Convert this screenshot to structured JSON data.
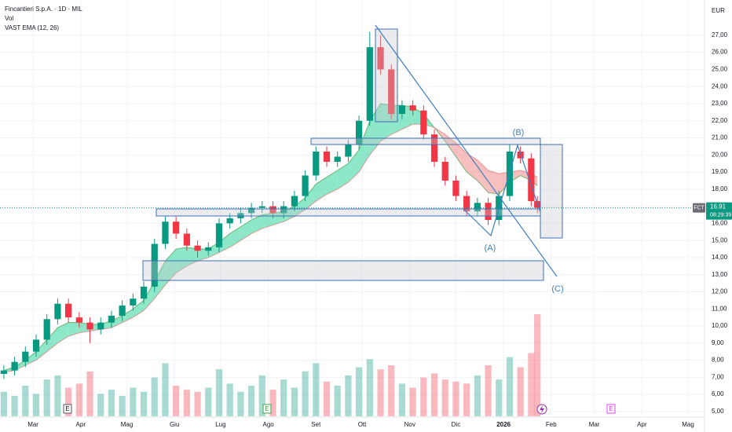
{
  "chart_data": {
    "type": "candlestick",
    "title": "Fincantieri S.p.A. · 1D · MIL",
    "volume_label": "Vol",
    "indicator_label": "VAST EMA (12, 26)",
    "currency": "EUR",
    "symbol": "FCT",
    "last_price": {
      "value": 16.91,
      "label": "16,91"
    },
    "countdown": "08:29:39",
    "annotations": [
      "(A)",
      "(B)",
      "(C)"
    ],
    "event_markers": [
      "E",
      "E",
      "E"
    ],
    "up_color": "#089981",
    "down_color": "#f23645",
    "xlim": [
      37.5,
      495.7
    ],
    "ylim": [
      4.72,
      29.06
    ],
    "xticks": [
      {
        "value": 59,
        "label": "Mar"
      },
      {
        "value": 90,
        "label": "Apr"
      },
      {
        "value": 120,
        "label": "Mag"
      },
      {
        "value": 151,
        "label": "Giu"
      },
      {
        "value": 181,
        "label": "Lug"
      },
      {
        "value": 212,
        "label": "Ago"
      },
      {
        "value": 243,
        "label": "Set"
      },
      {
        "value": 273,
        "label": "Ott"
      },
      {
        "value": 304,
        "label": "Nov"
      },
      {
        "value": 334,
        "label": "Dic"
      },
      {
        "value": 365,
        "label": "2026"
      },
      {
        "value": 396,
        "label": "Feb"
      },
      {
        "value": 424,
        "label": "Mar"
      },
      {
        "value": 455,
        "label": "Apr"
      },
      {
        "value": 485,
        "label": "Mag"
      }
    ],
    "yticks": [
      {
        "value": 5,
        "label": "5,00"
      },
      {
        "value": 6,
        "label": "6,00"
      },
      {
        "value": 7,
        "label": "7,00"
      },
      {
        "value": 8,
        "label": "8,00"
      },
      {
        "value": 9,
        "label": "9,00"
      },
      {
        "value": 10,
        "label": "10,00"
      },
      {
        "value": 11,
        "label": "11,00"
      },
      {
        "value": 12,
        "label": "12,00"
      },
      {
        "value": 13,
        "label": "13,00"
      },
      {
        "value": 14,
        "label": "14,00"
      },
      {
        "value": 15,
        "label": "15,00"
      },
      {
        "value": 16,
        "label": "16,00"
      },
      {
        "value": 17,
        "label": "17,00"
      },
      {
        "value": 18,
        "label": "18,00"
      },
      {
        "value": 19,
        "label": "19,00"
      },
      {
        "value": 20,
        "label": "20,00"
      },
      {
        "value": 21,
        "label": "21,00"
      },
      {
        "value": 22,
        "label": "22,00"
      },
      {
        "value": 23,
        "label": "23,00"
      },
      {
        "value": 24,
        "label": "24,00"
      },
      {
        "value": 25,
        "label": "25,00"
      },
      {
        "value": 26,
        "label": "26,00"
      },
      {
        "value": 27,
        "label": "27,00"
      }
    ],
    "x": [
      40,
      47,
      54,
      61,
      68,
      75,
      82,
      89,
      96,
      103,
      110,
      117,
      124,
      131,
      138,
      145,
      152,
      159,
      166,
      173,
      180,
      187,
      194,
      201,
      208,
      215,
      222,
      229,
      236,
      243,
      250,
      257,
      264,
      271,
      278,
      285,
      292,
      299,
      306,
      313,
      320,
      327,
      334,
      341,
      348,
      355,
      362,
      369,
      376,
      383,
      387
    ],
    "ohlc": [
      [
        7.2,
        7.7,
        6.9,
        7.4
      ],
      [
        7.4,
        8.2,
        7.1,
        7.9
      ],
      [
        7.9,
        8.8,
        7.6,
        8.5
      ],
      [
        8.5,
        9.5,
        8.2,
        9.2
      ],
      [
        9.2,
        10.7,
        8.9,
        10.4
      ],
      [
        10.4,
        11.6,
        10.1,
        11.3
      ],
      [
        11.3,
        11.6,
        10.2,
        10.5
      ],
      [
        10.5,
        10.8,
        9.9,
        10.2
      ],
      [
        10.2,
        10.5,
        9.0,
        9.8
      ],
      [
        9.8,
        10.5,
        9.5,
        10.2
      ],
      [
        10.2,
        10.9,
        9.9,
        10.6
      ],
      [
        10.6,
        11.5,
        10.3,
        11.2
      ],
      [
        11.2,
        11.9,
        10.9,
        11.6
      ],
      [
        11.6,
        12.6,
        11.3,
        12.3
      ],
      [
        12.3,
        15.1,
        12.0,
        14.8
      ],
      [
        14.8,
        16.4,
        14.5,
        16.1
      ],
      [
        16.1,
        16.4,
        15.1,
        15.4
      ],
      [
        15.4,
        15.7,
        14.4,
        14.7
      ],
      [
        14.7,
        15.0,
        14.0,
        14.4
      ],
      [
        14.4,
        14.9,
        14.1,
        14.6
      ],
      [
        14.6,
        16.3,
        14.3,
        16.0
      ],
      [
        16.0,
        16.6,
        15.7,
        16.3
      ],
      [
        16.3,
        16.9,
        16.0,
        16.6
      ],
      [
        16.6,
        17.2,
        16.3,
        16.9
      ],
      [
        16.9,
        17.3,
        16.6,
        17.0
      ],
      [
        17.0,
        17.3,
        16.3,
        16.6
      ],
      [
        16.6,
        17.3,
        16.3,
        17.0
      ],
      [
        17.0,
        17.9,
        16.7,
        17.6
      ],
      [
        17.6,
        19.1,
        17.3,
        18.8
      ],
      [
        18.8,
        20.5,
        18.5,
        20.2
      ],
      [
        20.2,
        20.5,
        19.3,
        19.6
      ],
      [
        19.6,
        20.2,
        19.3,
        19.9
      ],
      [
        19.9,
        20.9,
        19.6,
        20.6
      ],
      [
        20.6,
        22.3,
        20.3,
        22.0
      ],
      [
        22.0,
        27.2,
        21.7,
        26.3
      ],
      [
        26.3,
        27.0,
        24.7,
        25.0
      ],
      [
        25.0,
        25.3,
        22.1,
        22.4
      ],
      [
        22.4,
        23.2,
        22.1,
        22.9
      ],
      [
        22.9,
        23.2,
        22.3,
        22.6
      ],
      [
        22.6,
        22.9,
        20.9,
        21.2
      ],
      [
        21.2,
        21.5,
        19.3,
        19.6
      ],
      [
        19.6,
        19.9,
        18.2,
        18.5
      ],
      [
        18.5,
        18.8,
        17.3,
        17.6
      ],
      [
        17.6,
        17.9,
        16.4,
        16.7
      ],
      [
        16.7,
        17.5,
        16.4,
        17.2
      ],
      [
        17.2,
        17.5,
        15.9,
        16.2
      ],
      [
        16.2,
        17.9,
        15.9,
        17.6
      ],
      [
        17.6,
        20.6,
        17.3,
        20.2
      ],
      [
        20.2,
        20.5,
        19.5,
        19.8
      ],
      [
        19.8,
        20.1,
        17.0,
        17.3
      ],
      [
        17.3,
        17.6,
        16.6,
        16.91
      ]
    ],
    "volume": [
      1.2,
      1.0,
      1.5,
      1.1,
      1.8,
      2.0,
      1.4,
      1.6,
      2.2,
      1.1,
      1.3,
      1.0,
      1.4,
      1.2,
      1.9,
      2.6,
      1.5,
      1.3,
      1.2,
      1.4,
      2.3,
      1.6,
      1.2,
      1.5,
      2.0,
      1.3,
      1.8,
      1.4,
      2.2,
      2.6,
      1.7,
      1.5,
      2.0,
      2.4,
      2.8,
      2.3,
      2.5,
      1.6,
      1.4,
      1.9,
      2.1,
      1.8,
      1.7,
      1.6,
      2.0,
      2.5,
      1.8,
      2.9,
      2.4,
      3.1,
      5.0
    ],
    "series": [
      {
        "name": "EMA 12",
        "color": "#43a047",
        "values": [
          7.4,
          7.6,
          8.0,
          8.5,
          9.2,
          9.9,
          10.2,
          10.2,
          10.1,
          10.1,
          10.3,
          10.6,
          11.0,
          11.5,
          12.6,
          13.8,
          14.5,
          14.6,
          14.5,
          14.5,
          14.9,
          15.4,
          15.8,
          16.2,
          16.5,
          16.6,
          16.7,
          17.0,
          17.5,
          18.3,
          18.7,
          19.1,
          19.5,
          20.3,
          22.0,
          23.0,
          22.9,
          22.9,
          22.8,
          22.4,
          21.6,
          20.8,
          19.9,
          19.0,
          18.5,
          17.8,
          17.7,
          18.4,
          18.8,
          18.5,
          18.2
        ]
      },
      {
        "name": "EMA 26",
        "color": "#e57373",
        "values": [
          7.3,
          7.4,
          7.7,
          8.0,
          8.5,
          9.0,
          9.4,
          9.6,
          9.7,
          9.8,
          9.9,
          10.2,
          10.5,
          10.9,
          11.6,
          12.4,
          13.1,
          13.5,
          13.8,
          14.0,
          14.3,
          14.6,
          15.0,
          15.4,
          15.7,
          15.9,
          16.1,
          16.4,
          16.8,
          17.3,
          17.7,
          18.0,
          18.4,
          19.0,
          20.0,
          20.8,
          21.2,
          21.5,
          21.8,
          21.8,
          21.6,
          21.2,
          20.7,
          20.1,
          19.7,
          19.1,
          18.9,
          19.0,
          19.1,
          18.9,
          18.7
        ]
      }
    ]
  }
}
